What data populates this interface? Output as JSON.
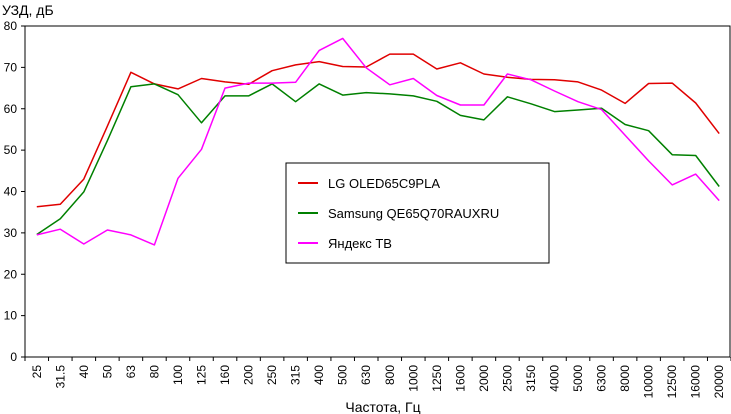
{
  "chart_data": {
    "type": "line",
    "ylabel": "УЗД, дБ",
    "xlabel": "Частота, Гц",
    "ylim": [
      0,
      80
    ],
    "yticks": [
      0,
      10,
      20,
      30,
      40,
      50,
      60,
      70,
      80
    ],
    "grid": "none",
    "legend_position": "center",
    "categories": [
      "25",
      "31.5",
      "40",
      "50",
      "63",
      "80",
      "100",
      "125",
      "160",
      "200",
      "250",
      "315",
      "400",
      "500",
      "630",
      "800",
      "1000",
      "1250",
      "1600",
      "2000",
      "2500",
      "3150",
      "4000",
      "5000",
      "6300",
      "8000",
      "10000",
      "12500",
      "16000",
      "20000"
    ],
    "series": [
      {
        "name": "LG OLED65C9PLA",
        "color": "#e00000",
        "values": [
          36.3,
          36.9,
          43.0,
          55.8,
          68.8,
          66.0,
          64.8,
          67.3,
          66.5,
          65.9,
          69.2,
          70.6,
          71.4,
          70.2,
          70.1,
          73.2,
          73.2,
          69.6,
          71.1,
          68.4,
          67.6,
          67.1,
          67.0,
          66.5,
          64.5,
          61.3,
          66.1,
          66.2,
          61.4,
          54.0
        ]
      },
      {
        "name": "Samsung QE65Q70RAUXRU",
        "color": "#008000",
        "values": [
          29.6,
          33.4,
          39.9,
          52.3,
          65.3,
          66.0,
          63.4,
          56.6,
          63.1,
          63.1,
          66.0,
          61.7,
          66.0,
          63.3,
          63.9,
          63.6,
          63.1,
          61.8,
          58.4,
          57.3,
          62.9,
          61.2,
          59.3,
          59.7,
          60.1,
          56.2,
          54.7,
          48.9,
          48.7,
          41.2
        ]
      },
      {
        "name": "Яндекс ТВ",
        "color": "#ff00ff",
        "values": [
          29.5,
          30.9,
          27.3,
          30.7,
          29.5,
          27.1,
          43.2,
          50.2,
          65.0,
          66.2,
          66.2,
          66.4,
          74.1,
          77.0,
          69.9,
          65.8,
          67.3,
          63.2,
          60.9,
          60.9,
          68.4,
          67.0,
          64.3,
          61.7,
          59.8,
          53.6,
          47.4,
          41.6,
          44.2,
          37.8
        ]
      }
    ]
  }
}
